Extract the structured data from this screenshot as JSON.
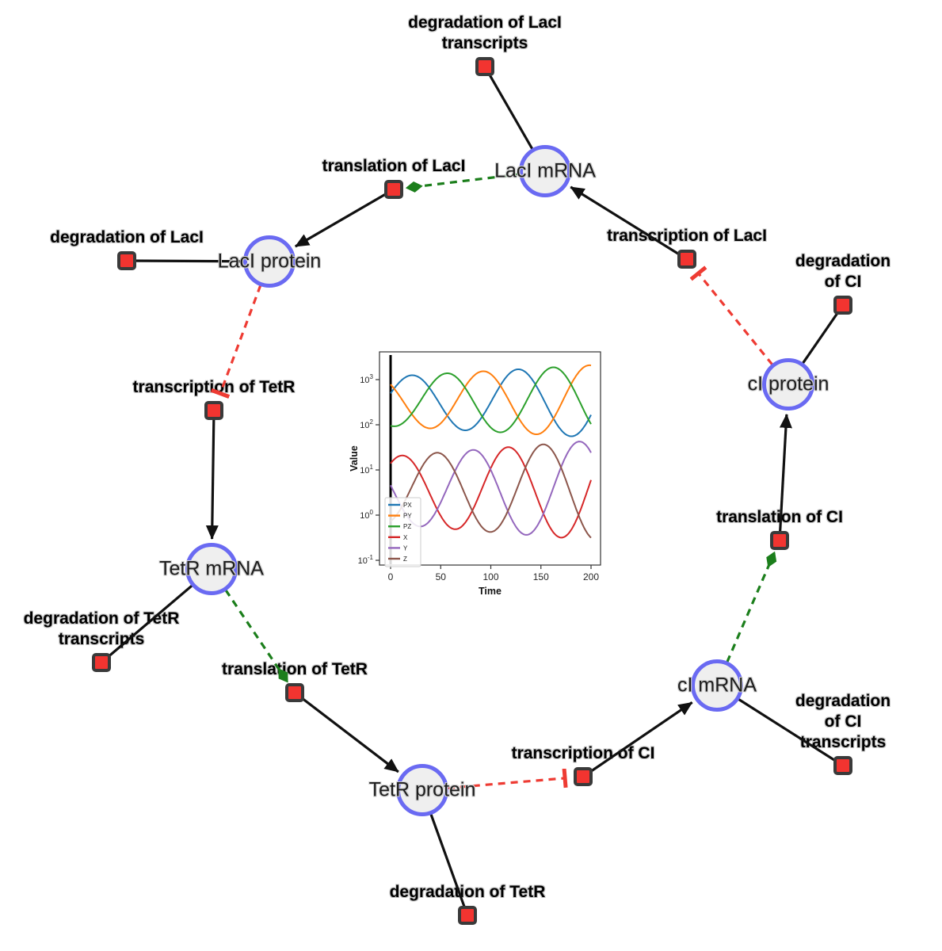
{
  "diagram": {
    "colors": {
      "species_fill": "#efefef",
      "species_border": "#6a6af2",
      "reaction_fill": "#f23430",
      "reaction_border": "#3a3a3a",
      "edge_main": "#111111",
      "edge_modifier": "#1b7e1b",
      "edge_inhibition": "#ee3b33",
      "label_color": "#000000"
    },
    "species_nodes": [
      {
        "id": "laci_mrna",
        "label": "LacI mRNA"
      },
      {
        "id": "laci_protein",
        "label": "LacI protein"
      },
      {
        "id": "tetr_mrna",
        "label": "TetR mRNA"
      },
      {
        "id": "tetr_protein",
        "label": "TetR protein"
      },
      {
        "id": "ci_mrna",
        "label": "cI mRNA"
      },
      {
        "id": "ci_protein",
        "label": "cI protein"
      }
    ],
    "reaction_nodes": [
      {
        "id": "deg_laci_tx",
        "label": "degradation of LacI\ntranscripts"
      },
      {
        "id": "transl_laci",
        "label": "translation of LacI"
      },
      {
        "id": "txn_laci",
        "label": "transcription of LacI"
      },
      {
        "id": "deg_laci",
        "label": "degradation of LacI"
      },
      {
        "id": "deg_ci",
        "label": "degradation of CI"
      },
      {
        "id": "txn_tetr",
        "label": "transcription of TetR"
      },
      {
        "id": "transl_ci",
        "label": "translation of CI"
      },
      {
        "id": "deg_tetr_tx",
        "label": "degradation of TetR\ntranscripts"
      },
      {
        "id": "transl_tetr",
        "label": "translation of TetR"
      },
      {
        "id": "deg_ci_tx",
        "label": "degradation of CI\ntranscripts"
      },
      {
        "id": "txn_ci",
        "label": "transcription of CI"
      },
      {
        "id": "deg_tetr",
        "label": "degradation of TetR"
      }
    ],
    "edges": [
      {
        "source": "laci_mrna",
        "target": "deg_laci_tx",
        "type": "reactant"
      },
      {
        "source": "laci_mrna",
        "target": "transl_laci",
        "type": "modifier"
      },
      {
        "source": "txn_laci",
        "target": "laci_mrna",
        "type": "product"
      },
      {
        "source": "transl_laci",
        "target": "laci_protein",
        "type": "product"
      },
      {
        "source": "laci_protein",
        "target": "deg_laci",
        "type": "reactant"
      },
      {
        "source": "laci_protein",
        "target": "txn_tetr",
        "type": "inhibition"
      },
      {
        "source": "txn_tetr",
        "target": "tetr_mrna",
        "type": "product"
      },
      {
        "source": "tetr_mrna",
        "target": "deg_tetr_tx",
        "type": "reactant"
      },
      {
        "source": "tetr_mrna",
        "target": "transl_tetr",
        "type": "modifier"
      },
      {
        "source": "transl_tetr",
        "target": "tetr_protein",
        "type": "product"
      },
      {
        "source": "tetr_protein",
        "target": "deg_tetr",
        "type": "reactant"
      },
      {
        "source": "tetr_protein",
        "target": "txn_ci",
        "type": "inhibition"
      },
      {
        "source": "txn_ci",
        "target": "ci_mrna",
        "type": "product"
      },
      {
        "source": "ci_mrna",
        "target": "deg_ci_tx",
        "type": "reactant"
      },
      {
        "source": "ci_mrna",
        "target": "transl_ci",
        "type": "modifier"
      },
      {
        "source": "transl_ci",
        "target": "ci_protein",
        "type": "product"
      },
      {
        "source": "ci_protein",
        "target": "deg_ci",
        "type": "reactant"
      },
      {
        "source": "ci_protein",
        "target": "txn_laci",
        "type": "inhibition"
      }
    ]
  },
  "chart_data": {
    "type": "line",
    "title": "",
    "xlabel": "Time",
    "ylabel": "Value",
    "x_ticks": [
      0,
      50,
      100,
      150,
      200
    ],
    "y_scale": "log",
    "y_tick_exponents": [
      3,
      2,
      1,
      0,
      -1
    ],
    "xlim": [
      -8,
      208
    ],
    "ylim_log10": [
      -1.1,
      3.6
    ],
    "grid": false,
    "legend_position": "lower left",
    "annotations": [
      {
        "kind": "vline",
        "x": 0,
        "color": "#000000"
      }
    ],
    "protein_value_range": [
      55,
      2100
    ],
    "mrna_value_range": [
      0.12,
      30
    ],
    "oscillation_period": 106,
    "series": [
      {
        "name": "PX",
        "color": "#1f77b4",
        "center_log10": 2.52,
        "amp_start": 0.55,
        "amp_end": 0.8,
        "period": 106,
        "peak_t": 127
      },
      {
        "name": "PY",
        "color": "#ff7f0e",
        "center_log10": 2.52,
        "amp_start": 0.55,
        "amp_end": 0.8,
        "period": 106,
        "peak_t": 198
      },
      {
        "name": "PZ",
        "color": "#2ca02c",
        "center_log10": 2.52,
        "amp_start": 0.55,
        "amp_end": 0.8,
        "period": 106,
        "peak_t": 162
      },
      {
        "name": "X",
        "color": "#d62728",
        "center_log10": 0.55,
        "amp_start": 0.75,
        "amp_end": 1.1,
        "period": 106,
        "peak_t": 117
      },
      {
        "name": "Y",
        "color": "#9467bd",
        "center_log10": 0.55,
        "amp_start": 0.75,
        "amp_end": 1.1,
        "period": 106,
        "peak_t": 188
      },
      {
        "name": "Z",
        "color": "#8c564b",
        "center_log10": 0.55,
        "amp_start": 0.75,
        "amp_end": 1.1,
        "period": 106,
        "peak_t": 152
      }
    ]
  }
}
